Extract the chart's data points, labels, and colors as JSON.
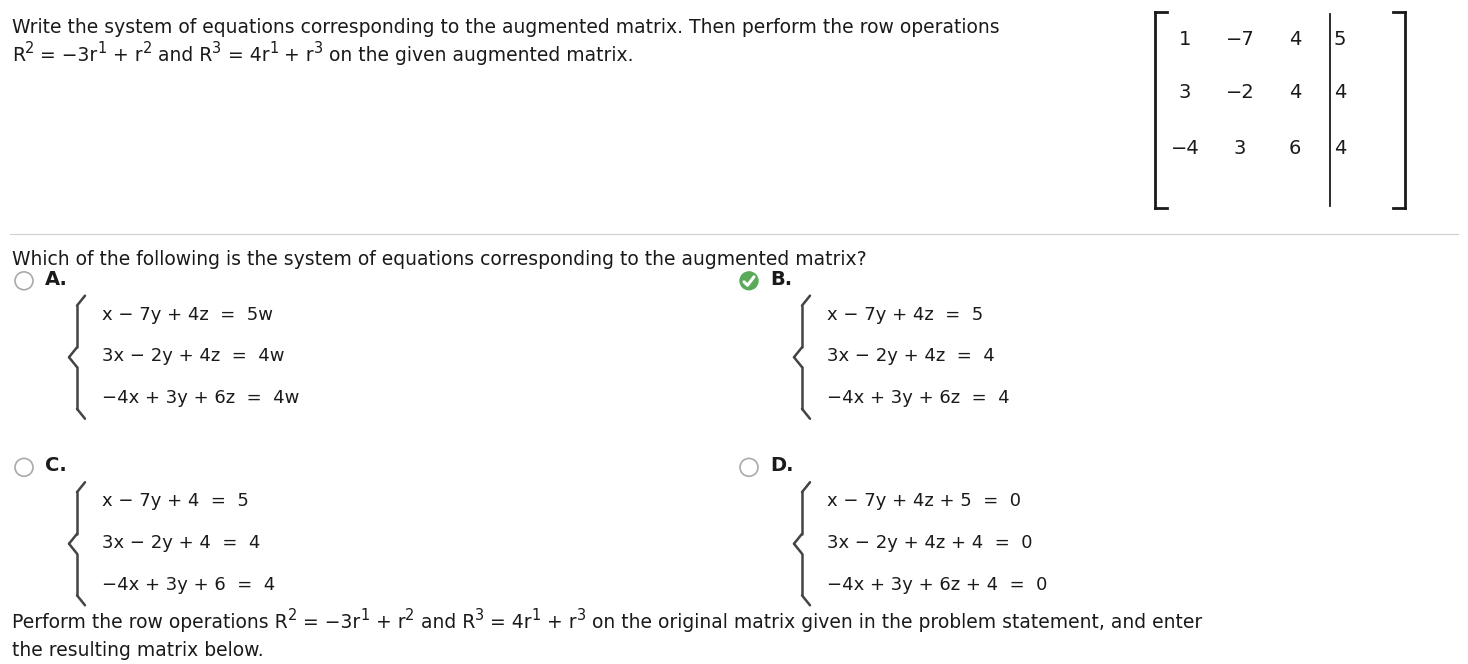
{
  "background_color": "#ffffff",
  "fig_width": 14.68,
  "fig_height": 6.64,
  "title_text": "Write the system of equations corresponding to the augmented matrix. Then perform the row operations",
  "matrix": [
    [
      "1",
      "−7",
      "4",
      "5"
    ],
    [
      "3",
      "−2",
      "4",
      "4"
    ],
    [
      "−4",
      "3",
      "6",
      "4"
    ]
  ],
  "question_text": "Which of the following is the system of equations corresponding to the augmented matrix?",
  "option_A_label": "A.",
  "option_A_lines": [
    "x − 7y + 4z  =  5w",
    "3x − 2y + 4z  =  4w",
    "−4x + 3y + 6z  =  4w"
  ],
  "option_B_label": "B.",
  "option_B_lines": [
    "x − 7y + 4z  =  5",
    "3x − 2y + 4z  =  4",
    "−4x + 3y + 6z  =  4"
  ],
  "option_C_label": "C.",
  "option_C_lines": [
    "x − 7y + 4  =  5",
    "3x − 2y + 4  =  4",
    "−4x + 3y + 6  =  4"
  ],
  "option_D_label": "D.",
  "option_D_lines": [
    "x − 7y + 4z + 5  =  0",
    "3x − 2y + 4z + 4  =  0",
    "−4x + 3y + 6z + 4  =  0"
  ],
  "footer_line1": "Perform the row operations R",
  "footer_sub1": "2",
  "footer_mid1": " = −3r",
  "footer_sub2": "1",
  "footer_mid2": " + r",
  "footer_sub3": "2",
  "footer_mid3": " and R",
  "footer_sub4": "3",
  "footer_mid4": " = 4r",
  "footer_sub5": "1",
  "footer_mid5": " + r",
  "footer_sub6": "3",
  "footer_end": " on the original matrix given in the problem statement, and enter",
  "footer_line2": "the resulting matrix below.",
  "selected_option": "B",
  "checkmark_color": "#5aaa5a",
  "text_color": "#1a1a1a",
  "circle_color": "#aaaaaa",
  "font_size_main": 13.5,
  "font_size_matrix": 14,
  "font_size_options": 13,
  "font_size_footer": 13.5
}
